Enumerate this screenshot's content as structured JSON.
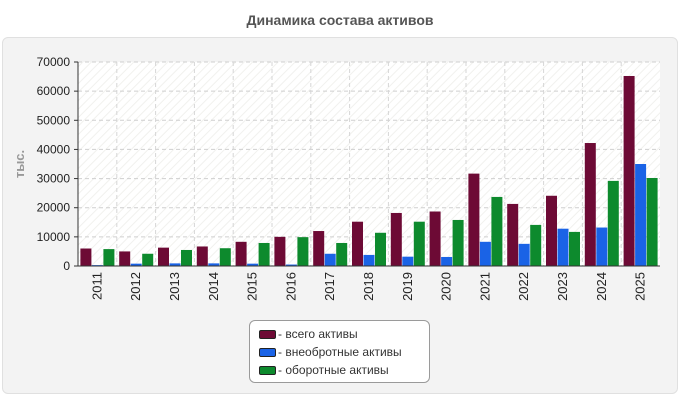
{
  "chart_data": {
    "type": "bar",
    "title": "Динамика состава активов",
    "ylabel": "тыс.",
    "xlabel": "",
    "ylim": [
      0,
      70000
    ],
    "yticks": [
      0,
      10000,
      20000,
      30000,
      40000,
      50000,
      60000,
      70000
    ],
    "grid": true,
    "legend_position": "bottom",
    "categories": [
      "2011",
      "2012",
      "2013",
      "2014",
      "2015",
      "2016",
      "2017",
      "2018",
      "2019",
      "2020",
      "2021",
      "2022",
      "2023",
      "2024",
      "2025"
    ],
    "series": [
      {
        "name": "всего активы",
        "color": "#6d0a35",
        "values": [
          6000,
          5000,
          6300,
          6700,
          8300,
          10000,
          12000,
          15200,
          18200,
          18700,
          31700,
          21300,
          24100,
          42200,
          65200
        ]
      },
      {
        "name": "внеобротные активы",
        "color": "#1a63e6",
        "values": [
          300,
          800,
          900,
          900,
          800,
          500,
          4200,
          3800,
          3200,
          3100,
          8300,
          7600,
          12800,
          13200,
          35000
        ]
      },
      {
        "name": "оборотные активы",
        "color": "#0d8a2d",
        "values": [
          5800,
          4200,
          5500,
          6100,
          7900,
          9900,
          7900,
          11400,
          15200,
          15800,
          23700,
          14100,
          11700,
          29200,
          30200
        ]
      }
    ]
  }
}
